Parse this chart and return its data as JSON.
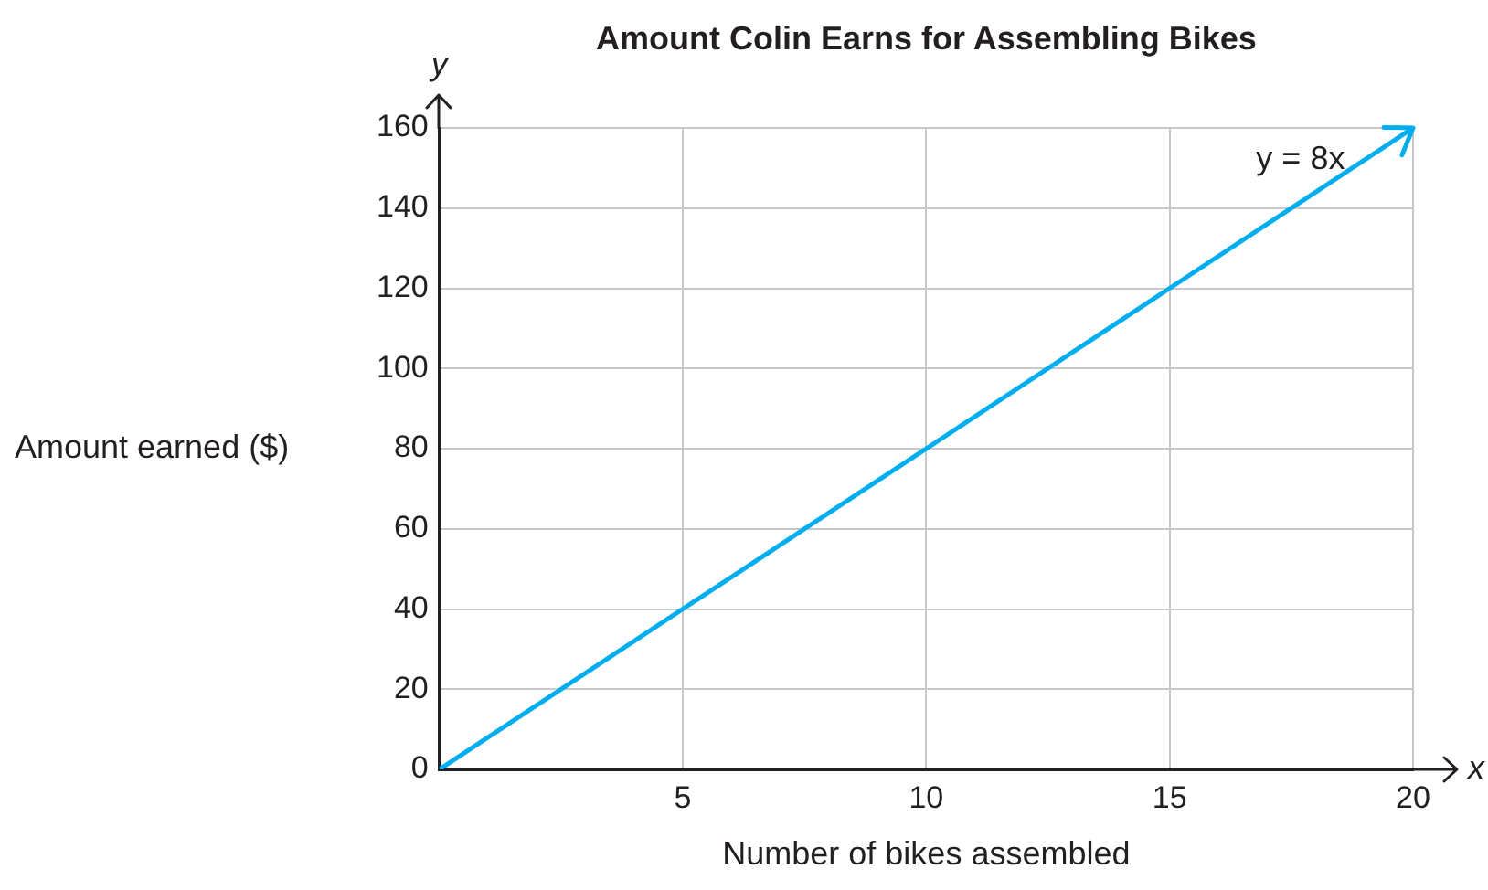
{
  "chart_data": {
    "type": "line",
    "title": "Amount Colin Earns for Assembling Bikes",
    "xlabel": "Number of bikes assembled",
    "ylabel": "Amount earned ($)",
    "x": [
      0,
      20
    ],
    "series": [
      {
        "color": "#00aeef",
        "values": [
          0,
          160
        ]
      }
    ],
    "xlim": [
      0,
      20
    ],
    "xticks": [
      {
        "value": 0,
        "label": null
      },
      5,
      10,
      15,
      20
    ],
    "ylim": [
      0,
      160
    ],
    "yticks": [
      0,
      20,
      40,
      60,
      80,
      100,
      120,
      140,
      160
    ],
    "grid": true,
    "legend": false,
    "marker": "none",
    "line_style": "solid",
    "annotations": [
      "y",
      "x",
      {
        "text": "y = 8x",
        "x": 18.6,
        "y": 152
      }
    ]
  }
}
